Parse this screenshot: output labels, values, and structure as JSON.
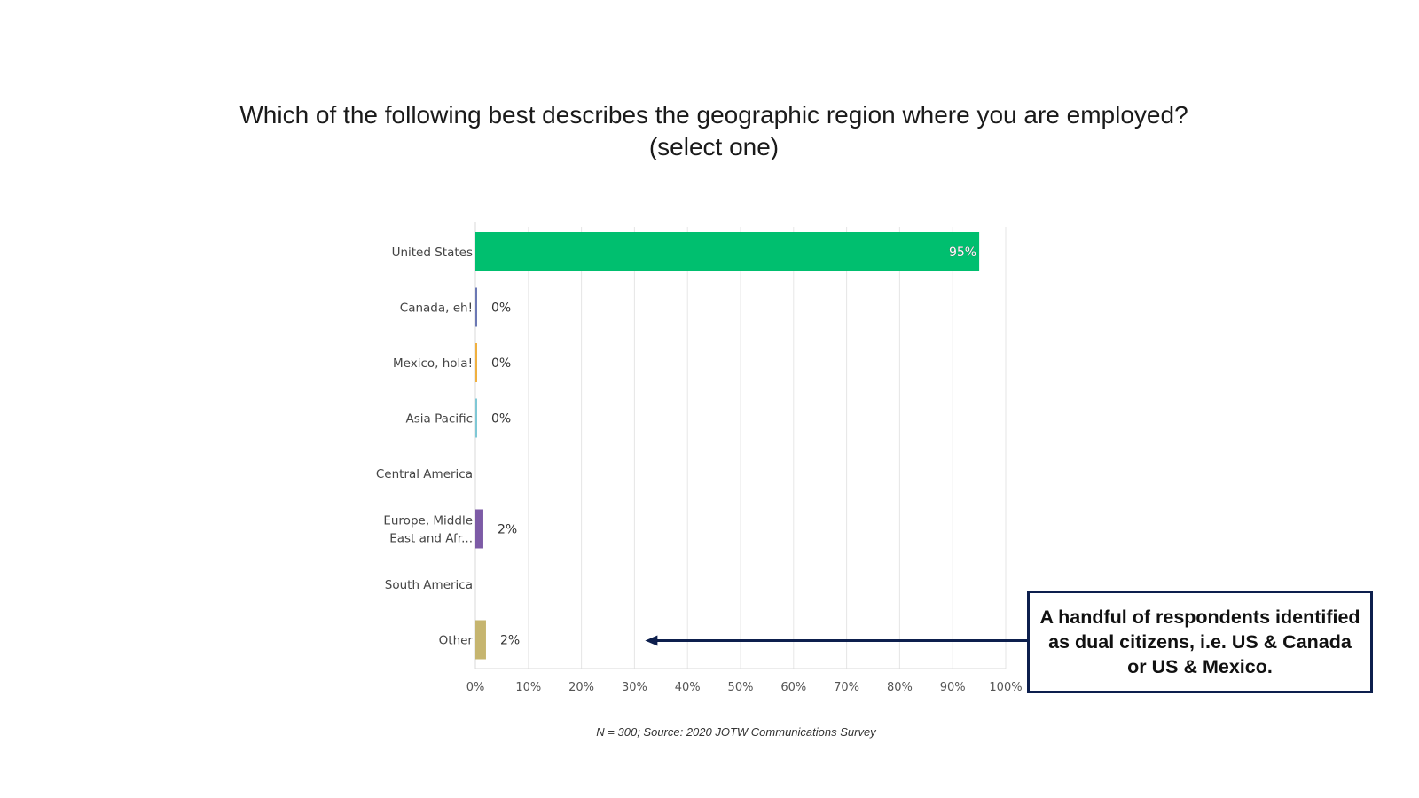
{
  "title_line1": "Which of the following best describes the geographic region where you are employed?",
  "title_line2": "(select one)",
  "chart_data": {
    "type": "bar",
    "orientation": "horizontal",
    "title": "Which of the following best describes the geographic region where you are employed? (select one)",
    "categories": [
      "United States",
      "Canada, eh!",
      "Mexico, hola!",
      "Asia Pacific",
      "Central America",
      "Europe, Middle East and Afr...",
      "South America",
      "Other"
    ],
    "category_lines": [
      [
        "United States"
      ],
      [
        "Canada, eh!"
      ],
      [
        "Mexico, hola!"
      ],
      [
        "Asia Pacific"
      ],
      [
        "Central America"
      ],
      [
        "Europe, Middle",
        "East and Afr..."
      ],
      [
        "South America"
      ],
      [
        "Other"
      ]
    ],
    "values": [
      95,
      0.3,
      0.3,
      0.3,
      0,
      1.5,
      0,
      2
    ],
    "data_labels": [
      "95%",
      "0%",
      "0%",
      "0%",
      "",
      "2%",
      "",
      "2%"
    ],
    "colors": [
      "#00bf6f",
      "#6b78b4",
      "#f0b03f",
      "#7fc8d6",
      "#ffffff",
      "#7d5ba6",
      "#ffffff",
      "#c6b56f"
    ],
    "xlim": [
      0,
      100
    ],
    "x_ticks": [
      0,
      10,
      20,
      30,
      40,
      50,
      60,
      70,
      80,
      90,
      100
    ],
    "x_tick_labels": [
      "0%",
      "10%",
      "20%",
      "30%",
      "40%",
      "50%",
      "60%",
      "70%",
      "80%",
      "90%",
      "100%"
    ],
    "grid": true,
    "gridline_color": "#e6e6e6"
  },
  "callout": {
    "text": "A handful of respondents identified as dual citizens, i.e. US & Canada or US & Mexico.",
    "border_color": "#0d1f4d",
    "target_category": "Other",
    "arrow_target_value": 32
  },
  "source_note": "N = 300; Source: 2020 JOTW Communications Survey"
}
